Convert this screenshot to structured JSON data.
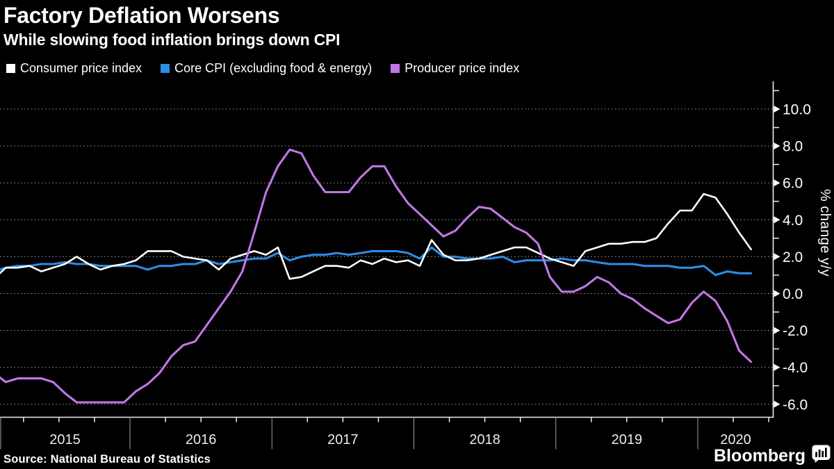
{
  "header": {
    "title": "Factory Deflation Worsens",
    "subtitle": "While slowing food inflation brings down CPI"
  },
  "footer": {
    "source": "Source: National Bureau of Statistics",
    "brand": "Bloomberg"
  },
  "chart_data": {
    "type": "line",
    "title": "Factory Deflation Worsens",
    "subtitle": "While slowing food inflation brings down CPI",
    "ylabel": "% change y/y",
    "frequency": "monthly",
    "x_start": "2015-01",
    "x_end": "2020-05",
    "x_year_labels": [
      "2015",
      "2016",
      "2017",
      "2018",
      "2019",
      "2020"
    ],
    "ylim": [
      -6.7,
      11.5
    ],
    "yticks": [
      -6,
      -4,
      -2,
      0,
      2,
      4,
      6,
      8,
      10
    ],
    "ytick_decimals": 1,
    "grid": "horizontal-dotted",
    "legend_position": "top-left",
    "background": "#000000",
    "grid_color": "#9a9a9a",
    "axis_color": "#f0f0f0",
    "draw_order": [
      1,
      0,
      2
    ],
    "series": [
      {
        "name": "Consumer price index",
        "color": "#ffffff",
        "stroke_width": 2.6,
        "values": [
          0.8,
          1.4,
          1.4,
          1.5,
          1.2,
          1.4,
          1.6,
          2.0,
          1.6,
          1.3,
          1.5,
          1.6,
          1.8,
          2.3,
          2.3,
          2.3,
          2.0,
          1.9,
          1.8,
          1.3,
          1.9,
          2.1,
          2.3,
          2.1,
          2.5,
          0.8,
          0.9,
          1.2,
          1.5,
          1.5,
          1.4,
          1.8,
          1.6,
          1.9,
          1.7,
          1.8,
          1.5,
          2.9,
          2.1,
          1.8,
          1.8,
          1.9,
          2.1,
          2.3,
          2.5,
          2.5,
          2.2,
          1.9,
          1.7,
          1.5,
          2.3,
          2.5,
          2.7,
          2.7,
          2.8,
          2.8,
          3.0,
          3.8,
          4.5,
          4.5,
          5.4,
          5.2,
          4.3,
          3.3,
          2.4
        ]
      },
      {
        "name": "Core CPI (excluding food & energy)",
        "color": "#2b8de4",
        "stroke_width": 3.1,
        "values": [
          1.2,
          1.4,
          1.5,
          1.5,
          1.6,
          1.6,
          1.7,
          1.6,
          1.6,
          1.5,
          1.5,
          1.5,
          1.5,
          1.3,
          1.5,
          1.5,
          1.6,
          1.6,
          1.8,
          1.6,
          1.7,
          1.8,
          1.9,
          1.9,
          2.2,
          1.8,
          2.0,
          2.1,
          2.1,
          2.2,
          2.1,
          2.2,
          2.3,
          2.3,
          2.3,
          2.2,
          1.9,
          2.5,
          2.0,
          2.0,
          1.9,
          1.9,
          1.9,
          2.0,
          1.7,
          1.8,
          1.8,
          1.8,
          1.9,
          1.8,
          1.8,
          1.7,
          1.6,
          1.6,
          1.6,
          1.5,
          1.5,
          1.5,
          1.4,
          1.4,
          1.5,
          1.0,
          1.2,
          1.1,
          1.1
        ]
      },
      {
        "name": "Producer price index",
        "color": "#c076e6",
        "stroke_width": 3.1,
        "values": [
          -4.3,
          -4.8,
          -4.6,
          -4.6,
          -4.6,
          -4.8,
          -5.4,
          -5.9,
          -5.9,
          -5.9,
          -5.9,
          -5.9,
          -5.3,
          -4.9,
          -4.3,
          -3.4,
          -2.8,
          -2.6,
          -1.7,
          -0.8,
          0.1,
          1.2,
          3.3,
          5.5,
          6.9,
          7.8,
          7.6,
          6.4,
          5.5,
          5.5,
          5.5,
          6.3,
          6.9,
          6.9,
          5.8,
          4.9,
          4.3,
          3.7,
          3.1,
          3.4,
          4.1,
          4.7,
          4.6,
          4.1,
          3.6,
          3.3,
          2.7,
          0.9,
          0.1,
          0.1,
          0.4,
          0.9,
          0.6,
          0.0,
          -0.3,
          -0.8,
          -1.2,
          -1.6,
          -1.4,
          -0.5,
          0.1,
          -0.4,
          -1.5,
          -3.1,
          -3.7
        ]
      }
    ]
  }
}
